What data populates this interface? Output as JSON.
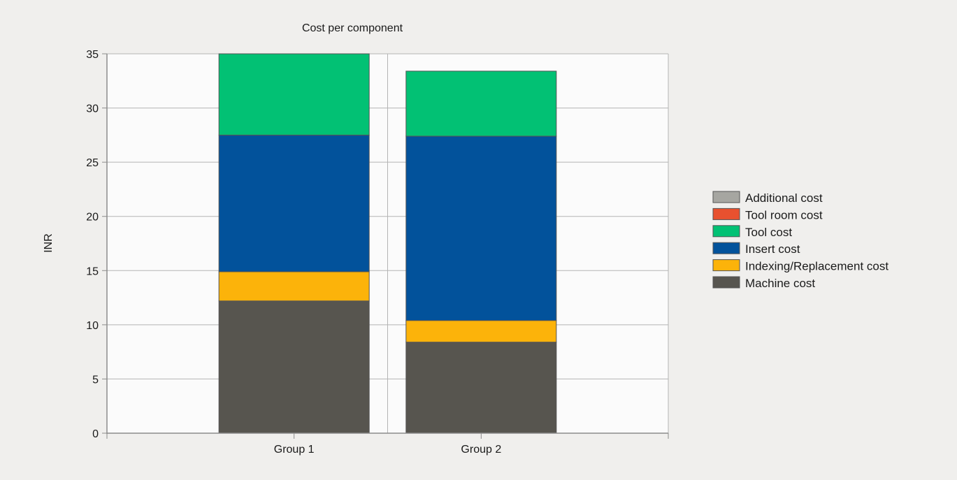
{
  "chart_data": {
    "type": "bar",
    "stacked": true,
    "title": "Cost per component",
    "xlabel": "",
    "ylabel": "INR",
    "categories": [
      "Group 1",
      "Group 2"
    ],
    "ylim": [
      0,
      35
    ],
    "yticks": [
      0,
      5,
      10,
      15,
      20,
      25,
      30,
      35
    ],
    "grid": true,
    "legend_position": "right",
    "series": [
      {
        "name": "Machine cost",
        "color": "#57554f",
        "values": [
          12.2,
          8.4
        ]
      },
      {
        "name": "Indexing/Replacement cost",
        "color": "#fcb30a",
        "values": [
          2.7,
          2.0
        ]
      },
      {
        "name": "Insert cost",
        "color": "#02529b",
        "values": [
          12.6,
          17.0
        ]
      },
      {
        "name": "Tool cost",
        "color": "#02c174",
        "values": [
          7.5,
          6.0
        ]
      },
      {
        "name": "Tool room cost",
        "color": "#e8512f",
        "values": [
          0,
          0
        ]
      },
      {
        "name": "Additional cost",
        "color": "#a6a6a1",
        "values": [
          0,
          0
        ]
      }
    ]
  }
}
